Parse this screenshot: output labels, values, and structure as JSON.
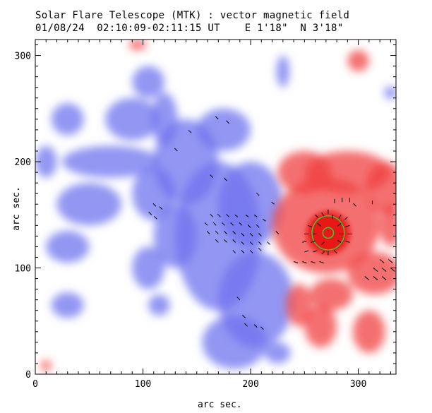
{
  "header": {
    "title": "Solar Flare Telescope (MTK) : vector magnetic field",
    "subtitle": "01/08/24  02:10:09-02:11:15 UT    E 1'18\"  N 3'18\""
  },
  "chart_data": {
    "type": "heatmap",
    "xlabel": "arc sec.",
    "ylabel": "arc sec.",
    "xlim": [
      0,
      335
    ],
    "ylim": [
      0,
      315
    ],
    "x_ticks": [
      0,
      100,
      200,
      300
    ],
    "y_ticks": [
      0,
      100,
      200,
      300
    ],
    "colors": {
      "negative_polarity": "#6f73ee",
      "positive_polarity": "#f04040",
      "contour": "#33cc33",
      "vectors": "#000000"
    },
    "blue_regions": [
      {
        "x": 170,
        "y": 130,
        "rx": 40,
        "ry": 70
      },
      {
        "x": 200,
        "y": 160,
        "rx": 30,
        "ry": 40
      },
      {
        "x": 175,
        "y": 230,
        "rx": 25,
        "ry": 20
      },
      {
        "x": 140,
        "y": 200,
        "rx": 30,
        "ry": 40
      },
      {
        "x": 110,
        "y": 170,
        "rx": 20,
        "ry": 25
      },
      {
        "x": 205,
        "y": 70,
        "rx": 35,
        "ry": 45
      },
      {
        "x": 185,
        "y": 30,
        "rx": 30,
        "ry": 25
      },
      {
        "x": 225,
        "y": 20,
        "rx": 12,
        "ry": 10
      },
      {
        "x": 105,
        "y": 275,
        "rx": 15,
        "ry": 15
      },
      {
        "x": 70,
        "y": 200,
        "rx": 45,
        "ry": 15
      },
      {
        "x": 10,
        "y": 200,
        "rx": 10,
        "ry": 15
      },
      {
        "x": 90,
        "y": 240,
        "rx": 25,
        "ry": 20
      },
      {
        "x": 30,
        "y": 240,
        "rx": 15,
        "ry": 15
      },
      {
        "x": 120,
        "y": 240,
        "rx": 12,
        "ry": 25
      },
      {
        "x": 50,
        "y": 160,
        "rx": 30,
        "ry": 20
      },
      {
        "x": 130,
        "y": 130,
        "rx": 20,
        "ry": 30
      },
      {
        "x": 30,
        "y": 120,
        "rx": 20,
        "ry": 15
      },
      {
        "x": 105,
        "y": 100,
        "rx": 15,
        "ry": 20
      },
      {
        "x": 30,
        "y": 65,
        "rx": 15,
        "ry": 12
      },
      {
        "x": 115,
        "y": 65,
        "rx": 10,
        "ry": 10
      },
      {
        "x": 230,
        "y": 285,
        "rx": 6,
        "ry": 15
      },
      {
        "x": 330,
        "y": 265,
        "rx": 6,
        "ry": 6
      }
    ],
    "red_regions": [
      {
        "x": 270,
        "y": 140,
        "rx": 50,
        "ry": 45
      },
      {
        "x": 290,
        "y": 190,
        "rx": 40,
        "ry": 20
      },
      {
        "x": 250,
        "y": 190,
        "rx": 25,
        "ry": 20
      },
      {
        "x": 325,
        "y": 175,
        "rx": 18,
        "ry": 25
      },
      {
        "x": 330,
        "y": 140,
        "rx": 10,
        "ry": 20
      },
      {
        "x": 315,
        "y": 95,
        "rx": 25,
        "ry": 20
      },
      {
        "x": 275,
        "y": 75,
        "rx": 20,
        "ry": 15
      },
      {
        "x": 245,
        "y": 65,
        "rx": 12,
        "ry": 20
      },
      {
        "x": 265,
        "y": 45,
        "rx": 15,
        "ry": 20
      },
      {
        "x": 310,
        "y": 40,
        "rx": 15,
        "ry": 20
      },
      {
        "x": 300,
        "y": 295,
        "rx": 10,
        "ry": 10
      },
      {
        "x": 95,
        "y": 310,
        "rx": 8,
        "ry": 5
      },
      {
        "x": 10,
        "y": 8,
        "rx": 5,
        "ry": 5
      }
    ],
    "core": {
      "x": 272,
      "y": 133,
      "rx": 20,
      "ry": 20
    },
    "contours": [
      {
        "x": 272,
        "y": 133,
        "rx": 15,
        "ry": 16
      },
      {
        "x": 272,
        "y": 133,
        "rx": 5,
        "ry": 5
      }
    ],
    "vectors": [
      {
        "x": 170,
        "y": 240,
        "dx": -4,
        "dy": -4
      },
      {
        "x": 145,
        "y": 227,
        "dx": -4,
        "dy": -4
      },
      {
        "x": 180,
        "y": 236,
        "dx": -4,
        "dy": -4
      },
      {
        "x": 132,
        "y": 210,
        "dx": -4,
        "dy": -4
      },
      {
        "x": 178,
        "y": 182,
        "dx": -4,
        "dy": -4
      },
      {
        "x": 165,
        "y": 185,
        "dx": -4,
        "dy": -4
      },
      {
        "x": 208,
        "y": 168,
        "dx": -4,
        "dy": -4
      },
      {
        "x": 222,
        "y": 160,
        "dx": -4,
        "dy": -3
      },
      {
        "x": 112,
        "y": 158,
        "dx": -4,
        "dy": -4
      },
      {
        "x": 118,
        "y": 155,
        "dx": -4,
        "dy": -4
      },
      {
        "x": 108,
        "y": 150,
        "dx": -4,
        "dy": -4
      },
      {
        "x": 113,
        "y": 146,
        "dx": -4,
        "dy": -4
      },
      {
        "x": 165,
        "y": 148,
        "dx": -4,
        "dy": -4
      },
      {
        "x": 172,
        "y": 148,
        "dx": -4,
        "dy": -4
      },
      {
        "x": 180,
        "y": 148,
        "dx": -4,
        "dy": -4
      },
      {
        "x": 188,
        "y": 148,
        "dx": -4,
        "dy": -3
      },
      {
        "x": 198,
        "y": 148,
        "dx": -4,
        "dy": -3
      },
      {
        "x": 206,
        "y": 148,
        "dx": -4,
        "dy": -3
      },
      {
        "x": 214,
        "y": 144,
        "dx": -4,
        "dy": -3
      },
      {
        "x": 160,
        "y": 140,
        "dx": -4,
        "dy": -4
      },
      {
        "x": 168,
        "y": 140,
        "dx": -4,
        "dy": -4
      },
      {
        "x": 176,
        "y": 140,
        "dx": -4,
        "dy": -4
      },
      {
        "x": 184,
        "y": 140,
        "dx": -4,
        "dy": -4
      },
      {
        "x": 192,
        "y": 140,
        "dx": -4,
        "dy": -4
      },
      {
        "x": 200,
        "y": 138,
        "dx": -4,
        "dy": -4
      },
      {
        "x": 208,
        "y": 138,
        "dx": -4,
        "dy": -4
      },
      {
        "x": 162,
        "y": 132,
        "dx": -4,
        "dy": -4
      },
      {
        "x": 170,
        "y": 132,
        "dx": -4,
        "dy": -4
      },
      {
        "x": 178,
        "y": 132,
        "dx": -4,
        "dy": -4
      },
      {
        "x": 186,
        "y": 132,
        "dx": -4,
        "dy": -4
      },
      {
        "x": 194,
        "y": 130,
        "dx": -4,
        "dy": -4
      },
      {
        "x": 202,
        "y": 130,
        "dx": -4,
        "dy": -4
      },
      {
        "x": 210,
        "y": 130,
        "dx": -4,
        "dy": -4
      },
      {
        "x": 226,
        "y": 132,
        "dx": -4,
        "dy": -4
      },
      {
        "x": 170,
        "y": 124,
        "dx": -4,
        "dy": -4
      },
      {
        "x": 178,
        "y": 124,
        "dx": -4,
        "dy": -4
      },
      {
        "x": 186,
        "y": 124,
        "dx": -4,
        "dy": -4
      },
      {
        "x": 194,
        "y": 122,
        "dx": -4,
        "dy": -4
      },
      {
        "x": 202,
        "y": 122,
        "dx": -4,
        "dy": -4
      },
      {
        "x": 210,
        "y": 122,
        "dx": -4,
        "dy": -4
      },
      {
        "x": 218,
        "y": 122,
        "dx": -4,
        "dy": -4
      },
      {
        "x": 186,
        "y": 114,
        "dx": -4,
        "dy": -4
      },
      {
        "x": 194,
        "y": 114,
        "dx": -4,
        "dy": -4
      },
      {
        "x": 202,
        "y": 114,
        "dx": -4,
        "dy": -4
      },
      {
        "x": 210,
        "y": 116,
        "dx": -4,
        "dy": -4
      },
      {
        "x": 190,
        "y": 70,
        "dx": -4,
        "dy": -4
      },
      {
        "x": 195,
        "y": 53,
        "dx": -4,
        "dy": -4
      },
      {
        "x": 197,
        "y": 45,
        "dx": -4,
        "dy": -4
      },
      {
        "x": 206,
        "y": 44,
        "dx": -4,
        "dy": -4
      },
      {
        "x": 212,
        "y": 42,
        "dx": -4,
        "dy": -4
      },
      {
        "x": 278,
        "y": 165,
        "dx": 0,
        "dy": 6
      },
      {
        "x": 285,
        "y": 166,
        "dx": 0,
        "dy": 6
      },
      {
        "x": 292,
        "y": 166,
        "dx": 0,
        "dy": 6
      },
      {
        "x": 272,
        "y": 155,
        "dx": 0,
        "dy": 6
      },
      {
        "x": 298,
        "y": 158,
        "dx": -4,
        "dy": -4
      },
      {
        "x": 313,
        "y": 160,
        "dx": 0,
        "dy": -5
      },
      {
        "x": 260,
        "y": 150,
        "dx": 4,
        "dy": 4
      },
      {
        "x": 266,
        "y": 152,
        "dx": 3,
        "dy": 5
      },
      {
        "x": 276,
        "y": 150,
        "dx": 0,
        "dy": 6
      },
      {
        "x": 284,
        "y": 150,
        "dx": -3,
        "dy": 5
      },
      {
        "x": 290,
        "y": 148,
        "dx": -4,
        "dy": 4
      },
      {
        "x": 253,
        "y": 140,
        "dx": 6,
        "dy": 2
      },
      {
        "x": 262,
        "y": 142,
        "dx": 5,
        "dy": 4
      },
      {
        "x": 284,
        "y": 142,
        "dx": -5,
        "dy": 4
      },
      {
        "x": 292,
        "y": 140,
        "dx": -6,
        "dy": 2
      },
      {
        "x": 250,
        "y": 132,
        "dx": 6,
        "dy": 0
      },
      {
        "x": 258,
        "y": 132,
        "dx": 6,
        "dy": 0
      },
      {
        "x": 286,
        "y": 132,
        "dx": -6,
        "dy": 0
      },
      {
        "x": 294,
        "y": 132,
        "dx": -6,
        "dy": 0
      },
      {
        "x": 248,
        "y": 124,
        "dx": 6,
        "dy": -2
      },
      {
        "x": 256,
        "y": 124,
        "dx": 6,
        "dy": -2
      },
      {
        "x": 266,
        "y": 122,
        "dx": 4,
        "dy": -4
      },
      {
        "x": 284,
        "y": 124,
        "dx": -5,
        "dy": -3
      },
      {
        "x": 292,
        "y": 124,
        "dx": -6,
        "dy": -2
      },
      {
        "x": 250,
        "y": 115,
        "dx": 6,
        "dy": -2
      },
      {
        "x": 258,
        "y": 115,
        "dx": 6,
        "dy": -2
      },
      {
        "x": 266,
        "y": 113,
        "dx": 4,
        "dy": -4
      },
      {
        "x": 272,
        "y": 112,
        "dx": 0,
        "dy": -6
      },
      {
        "x": 280,
        "y": 114,
        "dx": -4,
        "dy": -4
      },
      {
        "x": 240,
        "y": 106,
        "dx": 6,
        "dy": 2
      },
      {
        "x": 248,
        "y": 106,
        "dx": 6,
        "dy": 2
      },
      {
        "x": 256,
        "y": 106,
        "dx": 6,
        "dy": 2
      },
      {
        "x": 264,
        "y": 106,
        "dx": 6,
        "dy": 2
      },
      {
        "x": 320,
        "y": 108,
        "dx": 6,
        "dy": 5
      },
      {
        "x": 328,
        "y": 108,
        "dx": 6,
        "dy": 5
      },
      {
        "x": 314,
        "y": 100,
        "dx": 6,
        "dy": 5
      },
      {
        "x": 322,
        "y": 100,
        "dx": 6,
        "dy": 5
      },
      {
        "x": 330,
        "y": 100,
        "dx": 6,
        "dy": 5
      },
      {
        "x": 306,
        "y": 92,
        "dx": 6,
        "dy": 5
      },
      {
        "x": 314,
        "y": 92,
        "dx": 6,
        "dy": 5
      },
      {
        "x": 322,
        "y": 92,
        "dx": 6,
        "dy": 5
      }
    ]
  }
}
